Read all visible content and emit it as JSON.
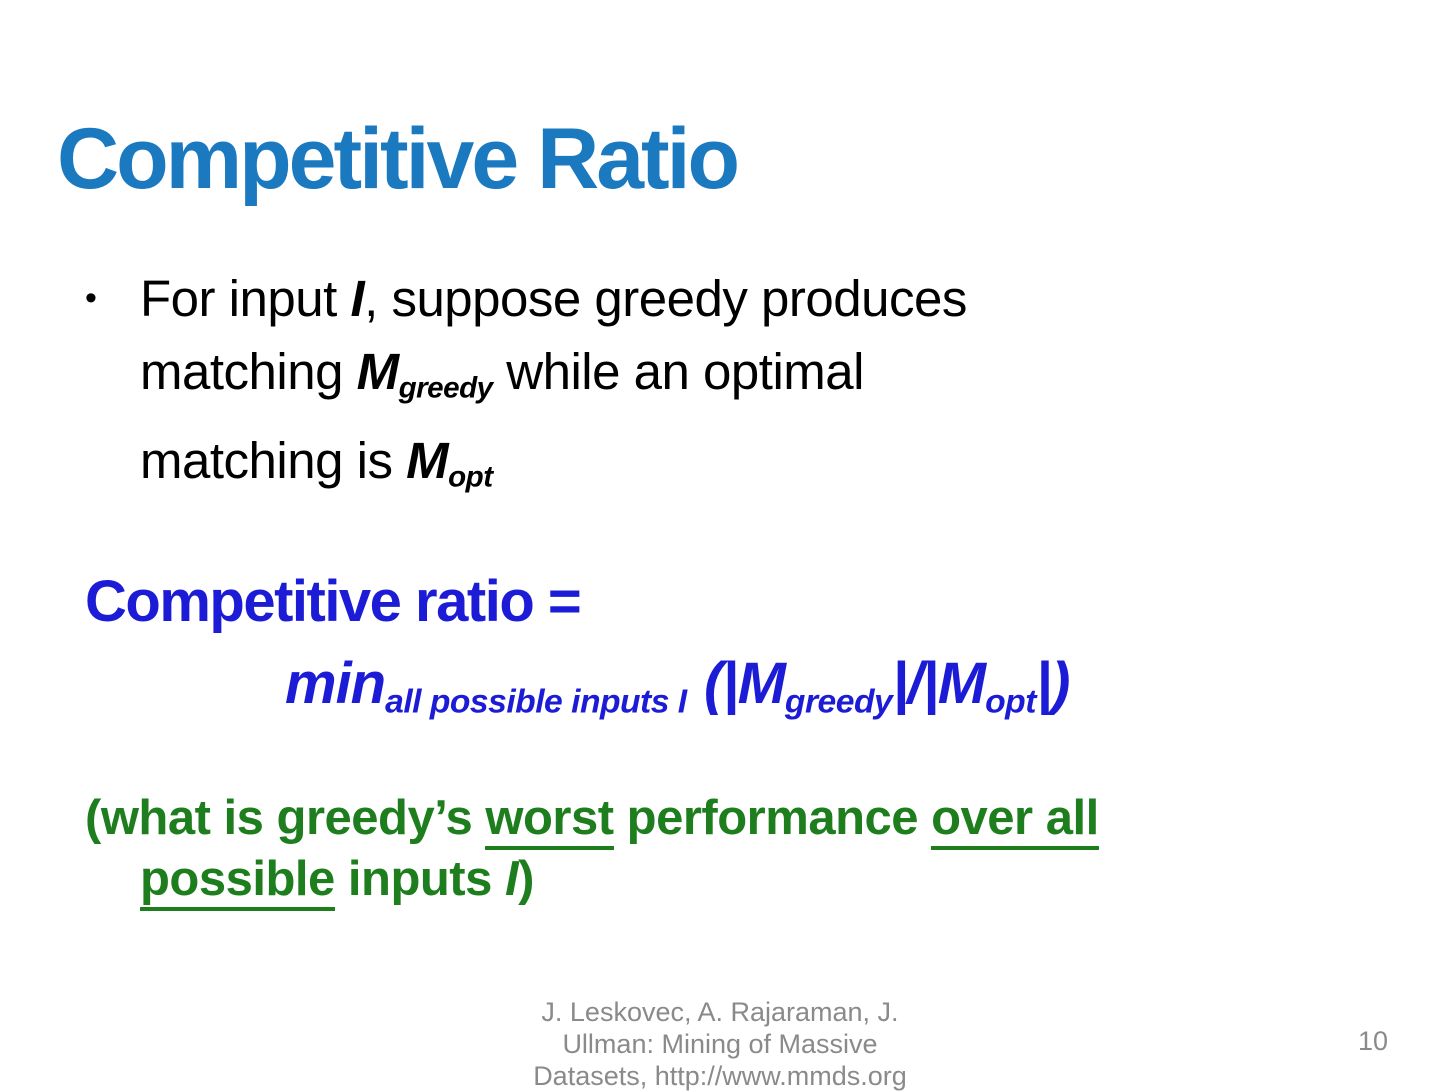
{
  "colors": {
    "title_blue": "#1b79c0",
    "formula_blue": "#1c1cd6",
    "note_green": "#1e7e1e",
    "footer_gray": "#8a8a8a",
    "body_black": "#000000"
  },
  "title": "Competitive Ratio",
  "bullet": {
    "marker": "•",
    "line1": {
      "pre": "For input ",
      "var": "I",
      "post": ", suppose greedy produces"
    },
    "line2": {
      "pre": "matching ",
      "var": "M",
      "sub": "greedy",
      "post": " while an optimal"
    },
    "line3": {
      "pre": "matching is ",
      "var": "M",
      "sub": "opt"
    }
  },
  "formula": {
    "heading": "Competitive ratio =",
    "min_operator": "min",
    "min_subscript": "all possible inputs I",
    "open_paren": "(|",
    "m1": "M",
    "m1_sub": "greedy",
    "divider": "|/|",
    "m2": "M",
    "m2_sub": "opt",
    "close_paren": "|)"
  },
  "note": {
    "seg1": "(what is greedy’s ",
    "u_worst": "worst",
    "seg2": " performance ",
    "u_over_all": "over all",
    "u_possible": "possible",
    "seg3": " inputs ",
    "var": "I",
    "seg4": ")"
  },
  "footer": {
    "citation_line1": "J. Leskovec, A. Rajaraman, J.",
    "citation_line2": "Ullman: Mining of Massive",
    "citation_line3": "Datasets, http://www.mmds.org",
    "page_number": "10"
  }
}
